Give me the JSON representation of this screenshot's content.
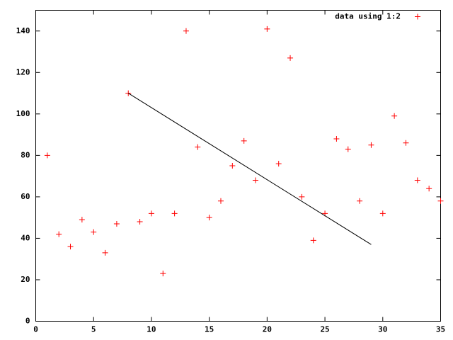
{
  "chart_data": {
    "type": "scatter",
    "x": [
      1,
      2,
      3,
      4,
      5,
      6,
      7,
      8,
      9,
      10,
      11,
      12,
      13,
      14,
      15,
      16,
      17,
      18,
      19,
      20,
      21,
      22,
      23,
      24,
      25,
      26,
      27,
      28,
      29,
      30,
      31,
      32,
      33,
      34,
      35
    ],
    "series": [
      {
        "name": "data using 1:2",
        "color": "#ff0000",
        "values": [
          80,
          42,
          36,
          49,
          43,
          33,
          47,
          110,
          48,
          52,
          23,
          52,
          140,
          84,
          50,
          58,
          75,
          87,
          68,
          141,
          76,
          127,
          60,
          39,
          52,
          88,
          83,
          58,
          85,
          52,
          99,
          86,
          68,
          64,
          58
        ]
      }
    ],
    "lines": [
      {
        "x": [
          8,
          29
        ],
        "y": [
          110,
          37
        ],
        "color": "#000000"
      }
    ],
    "xlim": [
      0,
      35
    ],
    "xticks": [
      0,
      5,
      10,
      15,
      20,
      25,
      30,
      35
    ],
    "ylim": [
      0,
      150
    ],
    "yticks": [
      0,
      20,
      40,
      60,
      80,
      100,
      120,
      140
    ],
    "legend": "top-right"
  }
}
